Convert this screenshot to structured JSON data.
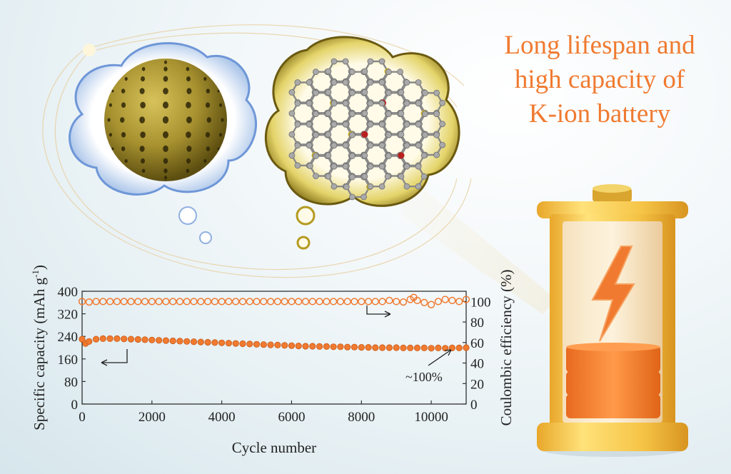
{
  "headline": {
    "lines": [
      "Long lifespan and",
      "high capacity of",
      "K-ion battery"
    ],
    "color": "#f07a30"
  },
  "illustrations": {
    "sphere_icon": "porous-sphere-icon",
    "graphene_icon": "doped-carbon-lattice-icon",
    "battery_icon": "battery-icon",
    "lightning_icon": "lightning-bolt-icon"
  },
  "chart_data": {
    "type": "scatter",
    "title": "",
    "xlabel": "Cycle number",
    "ylabel_left": "Specific capacity (mAh g",
    "ylabel_left_sup": "-1",
    "ylabel_left_tail": ")",
    "ylabel_right": "Coulombic efficiency (%)",
    "xlim": [
      0,
      11000
    ],
    "ylim_left": [
      0,
      400
    ],
    "ylim_right": [
      0,
      110
    ],
    "xticks": [
      0,
      2000,
      4000,
      6000,
      8000,
      10000
    ],
    "yticks_left": [
      0,
      80,
      160,
      240,
      320,
      400
    ],
    "yticks_right": [
      0,
      20,
      40,
      60,
      80,
      100
    ],
    "grid": false,
    "annotation": "~100%",
    "series": [
      {
        "axis": "right",
        "color": "#f07a30",
        "marker": "open-circle",
        "x": [
          0,
          200,
          400,
          600,
          800,
          1000,
          1200,
          1400,
          1600,
          1800,
          2000,
          2200,
          2400,
          2600,
          2800,
          3000,
          3200,
          3400,
          3600,
          3800,
          4000,
          4200,
          4400,
          4600,
          4800,
          5000,
          5200,
          5400,
          5600,
          5800,
          6000,
          6200,
          6400,
          6600,
          6800,
          7000,
          7200,
          7400,
          7600,
          7800,
          8000,
          8200,
          8400,
          8600,
          8800,
          9000,
          9200,
          9400,
          9500,
          9600,
          9800,
          10000,
          10200,
          10400,
          10600,
          10800,
          11000
        ],
        "y": [
          100,
          99.5,
          100,
          100,
          100,
          100,
          100,
          100,
          100,
          100,
          100,
          100,
          100,
          100,
          100,
          100,
          100,
          100,
          100,
          100,
          100,
          100,
          100,
          100,
          100,
          100,
          100,
          100,
          100,
          100,
          100,
          100,
          100,
          100,
          100,
          100,
          100,
          100,
          100,
          100,
          100,
          100,
          100,
          100,
          101,
          100,
          99.5,
          102,
          104,
          101,
          99,
          97,
          100,
          102,
          101,
          100,
          102
        ]
      },
      {
        "axis": "left",
        "color": "#f07a30",
        "marker": "filled-circle",
        "x": [
          0,
          100,
          200,
          400,
          600,
          800,
          1000,
          1200,
          1400,
          1600,
          1800,
          2000,
          2200,
          2400,
          2600,
          2800,
          3000,
          3200,
          3400,
          3600,
          3800,
          4000,
          4200,
          4400,
          4600,
          4800,
          5000,
          5200,
          5400,
          5600,
          5800,
          6000,
          6200,
          6400,
          6600,
          6800,
          7000,
          7200,
          7400,
          7600,
          7800,
          8000,
          8200,
          8400,
          8600,
          8800,
          9000,
          9200,
          9400,
          9600,
          9800,
          10000,
          10200,
          10400,
          10600,
          10800,
          11000
        ],
        "y": [
          230,
          215,
          222,
          230,
          232,
          232,
          232,
          231,
          230,
          229,
          228,
          227,
          226,
          225,
          224,
          223,
          222,
          221,
          220,
          219,
          218,
          217,
          216,
          215,
          214,
          213,
          212,
          211,
          210,
          209,
          208,
          207,
          206,
          205,
          205,
          204,
          204,
          203,
          203,
          202,
          202,
          201,
          201,
          200,
          200,
          200,
          200,
          199,
          199,
          199,
          199,
          198,
          199,
          198,
          199,
          199,
          200
        ]
      }
    ]
  }
}
